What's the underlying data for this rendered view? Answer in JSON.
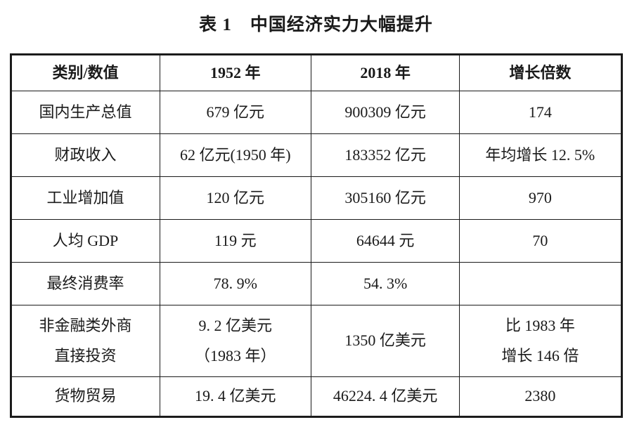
{
  "title": "表 1　中国经济实力大幅提升",
  "table": {
    "headers": [
      "类别/数值",
      "1952 年",
      "2018 年",
      "增长倍数"
    ],
    "rows": [
      {
        "category": "国内生产总值",
        "y1952": "679 亿元",
        "y2018": "900309 亿元",
        "growth": "174"
      },
      {
        "category": "财政收入",
        "y1952": "62 亿元(1950 年)",
        "y2018": "183352 亿元",
        "growth": "年均增长 12. 5%"
      },
      {
        "category": "工业增加值",
        "y1952": "120 亿元",
        "y2018": "305160 亿元",
        "growth": "970"
      },
      {
        "category": "人均 GDP",
        "y1952": "119 元",
        "y2018": "64644 元",
        "growth": "70"
      },
      {
        "category": "最终消费率",
        "y1952": "78. 9%",
        "y2018": "54. 3%",
        "growth": ""
      },
      {
        "category": "非金融类外商\n直接投资",
        "y1952": "9. 2 亿美元\n（1983 年）",
        "y2018": "1350 亿美元",
        "growth": "比 1983 年\n增长 146 倍"
      },
      {
        "category": "货物贸易",
        "y1952": "19. 4 亿美元",
        "y2018": "46224. 4 亿美元",
        "growth": "2380"
      }
    ]
  },
  "colors": {
    "text": "#1a1a1a",
    "border": "#1b1b1b",
    "background": "#ffffff"
  }
}
